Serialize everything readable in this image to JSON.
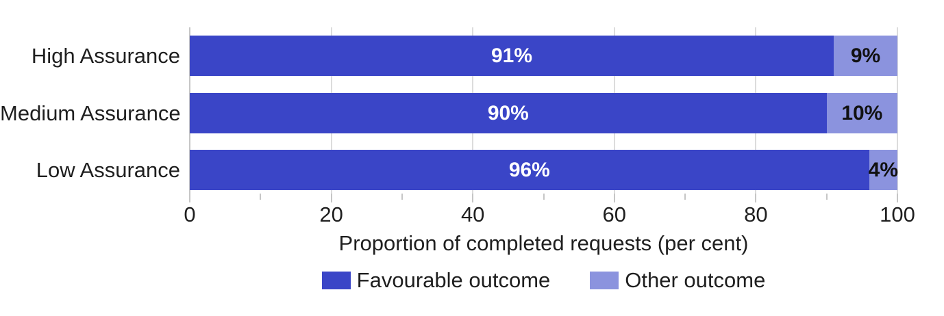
{
  "chart_data": {
    "type": "bar",
    "orientation": "horizontal",
    "stacked": true,
    "categories": [
      "High Assurance",
      "Medium Assurance",
      "Low Assurance"
    ],
    "series": [
      {
        "name": "Favourable outcome",
        "values": [
          91,
          90,
          96
        ],
        "data_labels": [
          "91%",
          "90%",
          "96%"
        ]
      },
      {
        "name": "Other outcome",
        "values": [
          9,
          10,
          4
        ],
        "data_labels": [
          "9%",
          "10%",
          "4%"
        ]
      }
    ],
    "xlabel": "Proportion of completed requests (per cent)",
    "xlim": [
      0,
      100
    ],
    "major_ticks": [
      0,
      20,
      40,
      60,
      80,
      100
    ],
    "major_tick_labels": [
      "0",
      "20",
      "40",
      "60",
      "80",
      "100"
    ],
    "minor_tick_step": 10,
    "grid": true,
    "legend_position": "bottom-center"
  },
  "colors": {
    "favourable": "#3a45c7",
    "other": "#8b93de",
    "grid": "#dcdcdc",
    "axis": "#c6c6c6",
    "text": "#1f1f1f",
    "background": "#ffffff"
  },
  "legend": {
    "items": [
      {
        "label": "Favourable outcome"
      },
      {
        "label": "Other outcome"
      }
    ]
  }
}
